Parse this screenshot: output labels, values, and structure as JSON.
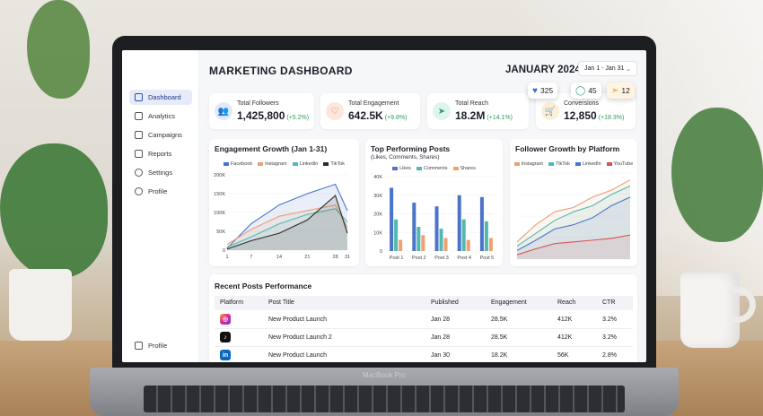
{
  "device": {
    "brand": "MacBook Pro"
  },
  "colors": {
    "accent": "#3b6fd1",
    "facebook": "#4a74c9",
    "instagram": "#e8a07a",
    "linkedin": "#53b8b0",
    "tiktok": "#2a2a2a",
    "youtube": "#d9534f",
    "shares": "#f0a070"
  },
  "sidebar": {
    "items": [
      {
        "label": "Dashboard",
        "icon": "grid-icon",
        "active": true
      },
      {
        "label": "Analytics",
        "icon": "bar-chart-icon"
      },
      {
        "label": "Campaigns",
        "icon": "megaphone-icon"
      },
      {
        "label": "Reports",
        "icon": "document-icon"
      },
      {
        "label": "Settings",
        "icon": "gear-icon"
      },
      {
        "label": "Profile",
        "icon": "user-icon"
      }
    ],
    "bottom_item": {
      "label": "Profile",
      "icon": "logout-icon"
    }
  },
  "header": {
    "title": "MARKETING DASHBOARD",
    "month": "JANUARY 2024",
    "date_range": "Jan 1 - Jan 31"
  },
  "badges": [
    {
      "icon": "heart-icon",
      "value": "325"
    },
    {
      "icon": "comment-icon",
      "value": "45"
    },
    {
      "icon": "send-icon",
      "value": "12"
    }
  ],
  "kpis": [
    {
      "label": "Total Followers",
      "value": "1,425,800",
      "delta": "(+5.2%)",
      "icon": "users-icon"
    },
    {
      "label": "Total Engagement",
      "value": "642.5K",
      "delta": "(+9.8%)",
      "icon": "heart-icon"
    },
    {
      "label": "Total Reach",
      "value": "18.2M",
      "delta": "(+14.1%)",
      "icon": "send-icon"
    },
    {
      "label": "Conversions",
      "value": "12,850",
      "delta": "(+18.3%)",
      "icon": "cart-icon"
    }
  ],
  "chart_data": [
    {
      "type": "area",
      "title": "Engagement Growth (Jan 1-31)",
      "legend": [
        "Facebook",
        "Instagram",
        "LinkedIn",
        "TikTok"
      ],
      "yticks": [
        "200K",
        "150K",
        "100K",
        "50K",
        "0"
      ],
      "xticks": [
        "1",
        "7",
        "14",
        "21",
        "28",
        "31"
      ],
      "x": [
        1,
        7,
        14,
        21,
        28,
        31
      ],
      "ylim": [
        0,
        200000
      ],
      "series": [
        {
          "name": "Facebook",
          "values": [
            5000,
            70000,
            120000,
            150000,
            175000,
            105000
          ]
        },
        {
          "name": "Instagram",
          "values": [
            15000,
            55000,
            90000,
            105000,
            120000,
            60000
          ]
        },
        {
          "name": "LinkedIn",
          "values": [
            8000,
            35000,
            70000,
            95000,
            110000,
            75000
          ]
        },
        {
          "name": "TikTok",
          "values": [
            3000,
            25000,
            45000,
            80000,
            145000,
            45000
          ]
        }
      ]
    },
    {
      "type": "bar",
      "title": "Top Performing Posts",
      "subtitle": "(Likes, Comments, Shares)",
      "legend": [
        "Likes",
        "Comments",
        "Shares"
      ],
      "yticks": [
        "40K",
        "30K",
        "20K",
        "10K",
        "0"
      ],
      "categories": [
        "Post 1",
        "Post 2",
        "Post 3",
        "Post 4",
        "Post 5"
      ],
      "ylim": [
        0,
        40000
      ],
      "series": [
        {
          "name": "Likes",
          "values": [
            34000,
            26000,
            24000,
            30000,
            29000
          ]
        },
        {
          "name": "Comments",
          "values": [
            17000,
            13000,
            12000,
            17000,
            16000
          ]
        },
        {
          "name": "Shares",
          "values": [
            6000,
            8500,
            7000,
            6000,
            7000
          ]
        }
      ]
    },
    {
      "type": "area",
      "title": "Follower Growth by Platform",
      "legend": [
        "Instagram",
        "TikTok",
        "LinkedIn",
        "YouTube"
      ],
      "x": [
        1,
        2,
        3,
        4,
        5,
        6,
        7
      ],
      "ylim": [
        0,
        100
      ],
      "series": [
        {
          "name": "Instagram",
          "values": [
            20,
            40,
            55,
            60,
            72,
            80,
            92
          ]
        },
        {
          "name": "TikTok",
          "values": [
            15,
            30,
            45,
            55,
            62,
            75,
            85
          ]
        },
        {
          "name": "LinkedIn",
          "values": [
            10,
            22,
            35,
            40,
            48,
            62,
            72
          ]
        },
        {
          "name": "YouTube",
          "values": [
            5,
            12,
            18,
            20,
            22,
            24,
            28
          ]
        }
      ]
    }
  ],
  "recent_posts": {
    "title": "Recent Posts Performance",
    "columns": [
      "Platform",
      "Post Title",
      "Published",
      "Engagement",
      "Reach",
      "CTR"
    ],
    "rows": [
      {
        "platform": "Instagram",
        "icon": "instagram-icon",
        "title": "New Product Launch",
        "published": "Jan 28",
        "engagement": "28.5K",
        "reach": "412K",
        "ctr": "3.2%"
      },
      {
        "platform": "TikTok",
        "icon": "tiktok-icon",
        "title": "New Product Launch 2",
        "published": "Jan 28",
        "engagement": "28.5K",
        "reach": "412K",
        "ctr": "3.2%"
      },
      {
        "platform": "LinkedIn",
        "icon": "linkedin-icon",
        "title": "New Product Launch",
        "published": "Jan 30",
        "engagement": "18.2K",
        "reach": "56K",
        "ctr": "2.8%"
      }
    ]
  }
}
